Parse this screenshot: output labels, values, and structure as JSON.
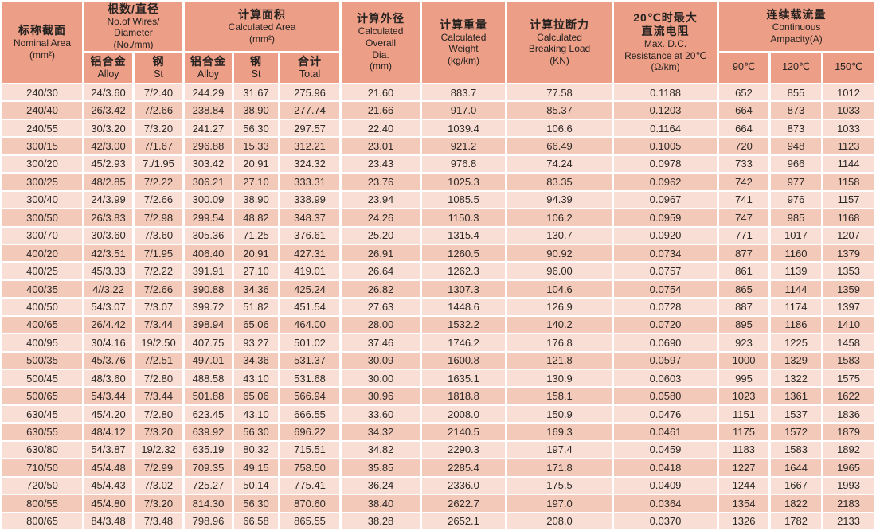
{
  "colors": {
    "header_bg": "#ec9e87",
    "row_light": "#f8ded4",
    "row_dark": "#f3c9b9",
    "text": "#2d2926",
    "gap": "#ffffff"
  },
  "table": {
    "header_groups": [
      {
        "id": "nominal-area",
        "lines": [
          "标称截面",
          "Nominal Area",
          "(mm²)"
        ]
      },
      {
        "id": "wires-diameter",
        "lines": [
          "根数/直径",
          "No.of Wires/",
          "Diameter",
          "(No./mm)"
        ],
        "sub": [
          {
            "id": "wires-alloy",
            "lines": [
              "铝合金",
              "Alloy"
            ]
          },
          {
            "id": "wires-steel",
            "lines": [
              "钢",
              "St"
            ]
          }
        ]
      },
      {
        "id": "calculated-area",
        "lines": [
          "计算面积",
          "Calculated Area",
          "(mm²)"
        ],
        "sub": [
          {
            "id": "area-alloy",
            "lines": [
              "铝合金",
              "Alloy"
            ]
          },
          {
            "id": "area-steel",
            "lines": [
              "钢",
              "St"
            ]
          },
          {
            "id": "area-total",
            "lines": [
              "合计",
              "Total"
            ]
          }
        ]
      },
      {
        "id": "overall-dia",
        "lines": [
          "计算外径",
          "Calculated",
          "Overall",
          "Dia.",
          "(mm)"
        ]
      },
      {
        "id": "calculated-weight",
        "lines": [
          "计算重量",
          "Calculated",
          "Weight",
          "(kg/km)"
        ]
      },
      {
        "id": "breaking-load",
        "lines": [
          "计算拉断力",
          "Calculated",
          "Breaking Load",
          "(KN)"
        ]
      },
      {
        "id": "dc-resistance",
        "lines": [
          "20℃时最大",
          "直流电阻",
          "Max. D.C.",
          "Resistance at 20℃",
          "(Ω/km)"
        ]
      },
      {
        "id": "continuous-ampacity",
        "lines": [
          "连续载流量",
          "Continuous",
          "Ampacity(A)"
        ],
        "sub": [
          {
            "id": "amp-90c",
            "lines": [
              "90℃"
            ]
          },
          {
            "id": "amp-120c",
            "lines": [
              "120℃"
            ]
          },
          {
            "id": "amp-150c",
            "lines": [
              "150℃"
            ]
          }
        ]
      }
    ],
    "rows": [
      [
        "240/30",
        "24/3.60",
        "7/2.40",
        "244.29",
        "31.67",
        "275.96",
        "21.60",
        "883.7",
        "77.58",
        "0.1188",
        "652",
        "855",
        "1012"
      ],
      [
        "240/40",
        "26/3.42",
        "7/2.66",
        "238.84",
        "38.90",
        "277.74",
        "21.66",
        "917.0",
        "85.37",
        "0.1203",
        "664",
        "873",
        "1033"
      ],
      [
        "240/55",
        "30/3.20",
        "7/3.20",
        "241.27",
        "56.30",
        "297.57",
        "22.40",
        "1039.4",
        "106.6",
        "0.1164",
        "664",
        "873",
        "1033"
      ],
      [
        "300/15",
        "42/3.00",
        "7/1.67",
        "296.88",
        "15.33",
        "312.21",
        "23.01",
        "921.2",
        "66.49",
        "0.1005",
        "720",
        "948",
        "1123"
      ],
      [
        "300/20",
        "45/2.93",
        "7./1.95",
        "303.42",
        "20.91",
        "324.32",
        "23.43",
        "976.8",
        "74.24",
        "0.0978",
        "733",
        "966",
        "1144"
      ],
      [
        "300/25",
        "48/2.85",
        "7/2.22",
        "306.21",
        "27.10",
        "333.31",
        "23.76",
        "1025.3",
        "83.35",
        "0.0962",
        "742",
        "977",
        "1158"
      ],
      [
        "300/40",
        "24/3.99",
        "7/2.66",
        "300.09",
        "38.90",
        "338.99",
        "23.94",
        "1085.5",
        "94.39",
        "0.0967",
        "741",
        "976",
        "1157"
      ],
      [
        "300/50",
        "26/3.83",
        "7/2.98",
        "299.54",
        "48.82",
        "348.37",
        "24.26",
        "1150.3",
        "106.2",
        "0.0959",
        "747",
        "985",
        "1168"
      ],
      [
        "300/70",
        "30/3.60",
        "7/3.60",
        "305.36",
        "71.25",
        "376.61",
        "25.20",
        "1315.4",
        "130.7",
        "0.0920",
        "771",
        "1017",
        "1207"
      ],
      [
        "400/20",
        "42/3.51",
        "7/1.95",
        "406.40",
        "20.91",
        "427.31",
        "26.91",
        "1260.5",
        "90.92",
        "0.0734",
        "877",
        "1160",
        "1379"
      ],
      [
        "400/25",
        "45/3.33",
        "7/2.22",
        "391.91",
        "27.10",
        "419.01",
        "26.64",
        "1262.3",
        "96.00",
        "0.0757",
        "861",
        "1139",
        "1353"
      ],
      [
        "400/35",
        "4//3.22",
        "7/2.66",
        "390.88",
        "34.36",
        "425.24",
        "26.82",
        "1307.3",
        "104.6",
        "0.0754",
        "865",
        "1144",
        "1359"
      ],
      [
        "400/50",
        "54/3.07",
        "7/3.07",
        "399.72",
        "51.82",
        "451.54",
        "27.63",
        "1448.6",
        "126.9",
        "0.0728",
        "887",
        "1174",
        "1397"
      ],
      [
        "400/65",
        "26/4.42",
        "7/3.44",
        "398.94",
        "65.06",
        "464.00",
        "28.00",
        "1532.2",
        "140.2",
        "0.0720",
        "895",
        "1186",
        "1410"
      ],
      [
        "400/95",
        "30/4.16",
        "19/2.50",
        "407.75",
        "93.27",
        "501.02",
        "37.46",
        "1746.2",
        "176.8",
        "0.0690",
        "923",
        "1225",
        "1458"
      ],
      [
        "500/35",
        "45/3.76",
        "7/2.51",
        "497.01",
        "34.36",
        "531.37",
        "30.09",
        "1600.8",
        "121.8",
        "0.0597",
        "1000",
        "1329",
        "1583"
      ],
      [
        "500/45",
        "48/3.60",
        "7/2.80",
        "488.58",
        "43.10",
        "531.68",
        "30.00",
        "1635.1",
        "130.9",
        "0.0603",
        "995",
        "1322",
        "1575"
      ],
      [
        "500/65",
        "54/3.44",
        "7/3.44",
        "501.88",
        "65.06",
        "566.94",
        "30.96",
        "1818.8",
        "158.1",
        "0.0580",
        "1023",
        "1361",
        "1622"
      ],
      [
        "630/45",
        "45/4.20",
        "7/2.80",
        "623.45",
        "43.10",
        "666.55",
        "33.60",
        "2008.0",
        "150.9",
        "0.0476",
        "1151",
        "1537",
        "1836"
      ],
      [
        "630/55",
        "48/4.12",
        "7/3.20",
        "639.92",
        "56.30",
        "696.22",
        "34.32",
        "2140.5",
        "169.3",
        "0.0461",
        "1175",
        "1572",
        "1879"
      ],
      [
        "630/80",
        "54/3.87",
        "19/2.32",
        "635.19",
        "80.32",
        "715.51",
        "34.82",
        "2290.3",
        "197.4",
        "0.0459",
        "1183",
        "1583",
        "1892"
      ],
      [
        "710/50",
        "45/4.48",
        "7/2.99",
        "709.35",
        "49.15",
        "758.50",
        "35.85",
        "2285.4",
        "171.8",
        "0.0418",
        "1227",
        "1644",
        "1965"
      ],
      [
        "720/50",
        "45/4.43",
        "7/3.02",
        "725.27",
        "50.14",
        "775.41",
        "36.24",
        "2336.0",
        "175.5",
        "0.0409",
        "1244",
        "1667",
        "1993"
      ],
      [
        "800/55",
        "45/4.80",
        "7/3.20",
        "814.30",
        "56.30",
        "870.60",
        "38.40",
        "2622.7",
        "197.0",
        "0.0364",
        "1354",
        "1822",
        "2183"
      ],
      [
        "800/65",
        "84/3.48",
        "7/3.48",
        "798.96",
        "66.58",
        "865.55",
        "38.28",
        "2652.1",
        "208.0",
        "0.0370",
        "1326",
        "1782",
        "2133"
      ]
    ]
  }
}
